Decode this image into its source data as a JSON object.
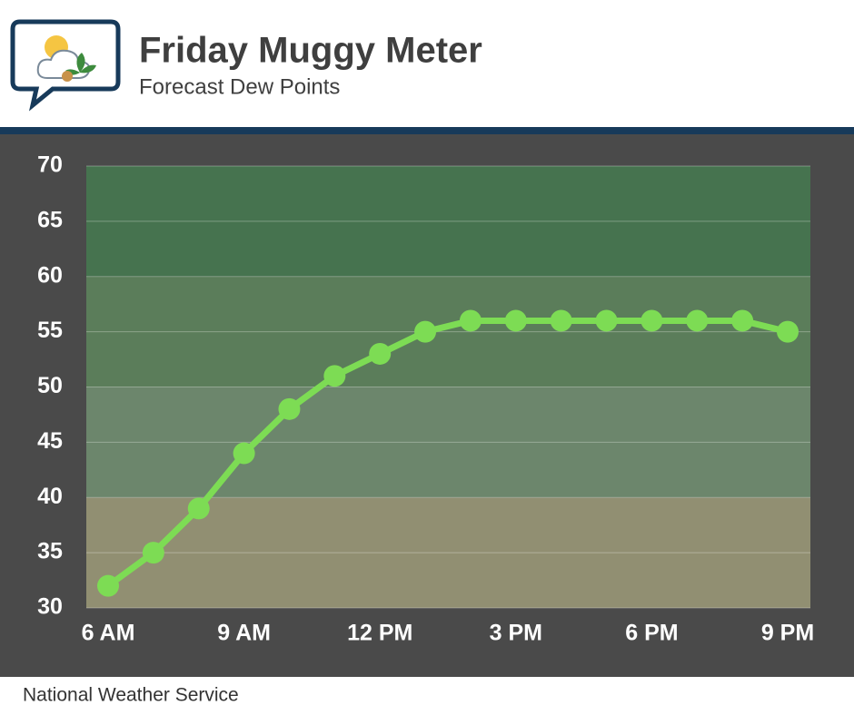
{
  "chart_data": {
    "type": "line",
    "title": "Friday Muggy Meter",
    "subtitle": "Forecast Dew Points",
    "source": "National Weather Service",
    "categories": [
      "6 AM",
      null,
      null,
      "9 AM",
      null,
      null,
      "12 PM",
      null,
      null,
      "3 PM",
      null,
      null,
      "6 PM",
      null,
      null,
      "9 PM"
    ],
    "values": [
      32,
      35,
      39,
      44,
      48,
      51,
      53,
      55,
      56,
      56,
      56,
      56,
      56,
      56,
      56,
      55
    ],
    "color": "#7ddc54",
    "ylim": [
      30,
      70
    ],
    "yticks": [
      30,
      35,
      40,
      45,
      50,
      55,
      60,
      65,
      70
    ],
    "grid": true,
    "bands": [
      {
        "from": 30,
        "to": 40,
        "color": "#918f72"
      },
      {
        "from": 40,
        "to": 50,
        "color": "#6c866c"
      },
      {
        "from": 50,
        "to": 60,
        "color": "#5b7d5a"
      },
      {
        "from": 60,
        "to": 70,
        "color": "#46734f"
      }
    ]
  }
}
